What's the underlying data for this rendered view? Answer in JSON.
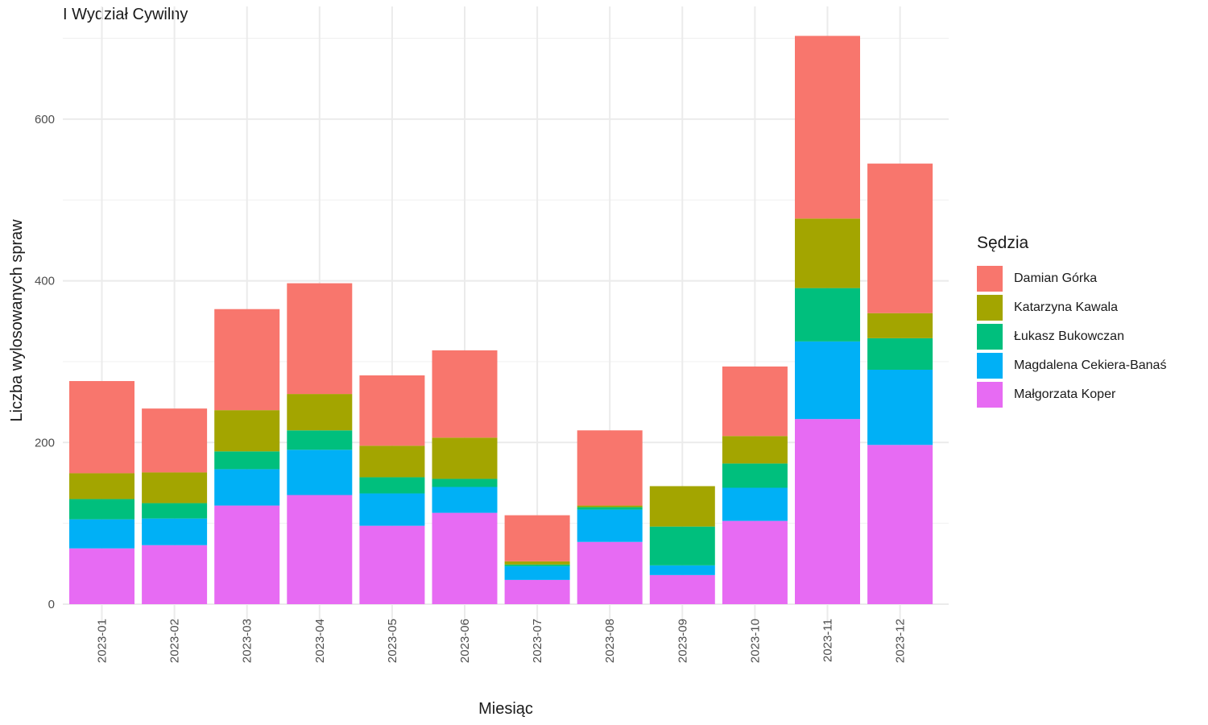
{
  "chart_data": {
    "type": "bar",
    "stacked": true,
    "title": "I Wydział Cywilny",
    "xlabel": "Miesiąc",
    "ylabel": "Liczba wylosowanych spraw",
    "ylim": [
      0,
      700
    ],
    "yticks": [
      0,
      200,
      400,
      600
    ],
    "grid": true,
    "legend_title": "Sędzia",
    "legend_position": "right",
    "categories": [
      "2023-01",
      "2023-02",
      "2023-03",
      "2023-04",
      "2023-05",
      "2023-06",
      "2023-07",
      "2023-08",
      "2023-09",
      "2023-10",
      "2023-11",
      "2023-12"
    ],
    "series": [
      {
        "name": "Małgorzata Koper",
        "color": "#E76BF3",
        "values": [
          69,
          73,
          122,
          135,
          97,
          113,
          30,
          77,
          36,
          103,
          229,
          197
        ]
      },
      {
        "name": "Magdalena Cekiera-Banaś",
        "color": "#00B0F6",
        "values": [
          36,
          33,
          45,
          56,
          40,
          32,
          17,
          40,
          12,
          41,
          96,
          93
        ]
      },
      {
        "name": "Łukasz Bukowczan",
        "color": "#00BF7D",
        "values": [
          25,
          19,
          22,
          24,
          20,
          10,
          2,
          3,
          48,
          30,
          66,
          39
        ]
      },
      {
        "name": "Katarzyna Kawala",
        "color": "#A3A500",
        "values": [
          32,
          38,
          51,
          45,
          39,
          51,
          4,
          2,
          50,
          34,
          86,
          31
        ]
      },
      {
        "name": "Damian Górka",
        "color": "#F8766D",
        "values": [
          114,
          79,
          125,
          137,
          87,
          108,
          57,
          93,
          0,
          86,
          226,
          185
        ]
      }
    ],
    "legend_order": [
      "Damian Górka",
      "Katarzyna Kawala",
      "Łukasz Bukowczan",
      "Magdalena Cekiera-Banaś",
      "Małgorzata Koper"
    ]
  }
}
